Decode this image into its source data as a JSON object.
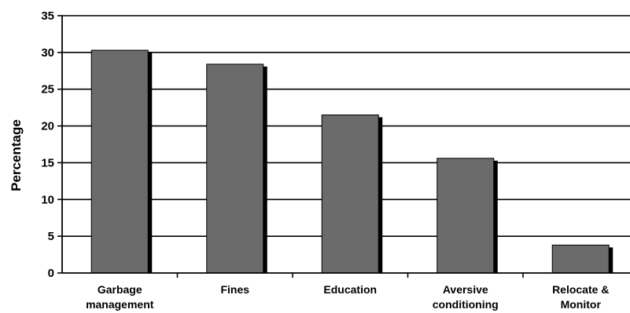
{
  "chart_data": {
    "type": "bar",
    "title": "",
    "xlabel": "",
    "ylabel": "Percentage",
    "ylim": [
      0,
      35
    ],
    "yticks": [
      0,
      5,
      10,
      15,
      20,
      25,
      30,
      35
    ],
    "grid": true,
    "legend": "none",
    "categories": [
      [
        "Garbage",
        "management"
      ],
      [
        "Fines"
      ],
      [
        "Education"
      ],
      [
        "Aversive",
        "conditioning"
      ],
      [
        "Relocate &",
        "Monitor"
      ]
    ],
    "values": [
      30.3,
      28.4,
      21.5,
      15.6,
      3.8
    ],
    "colors": {
      "bar": "#6b6b6b",
      "shadow": "#000000",
      "grid": "#000000",
      "axis": "#000000"
    }
  }
}
